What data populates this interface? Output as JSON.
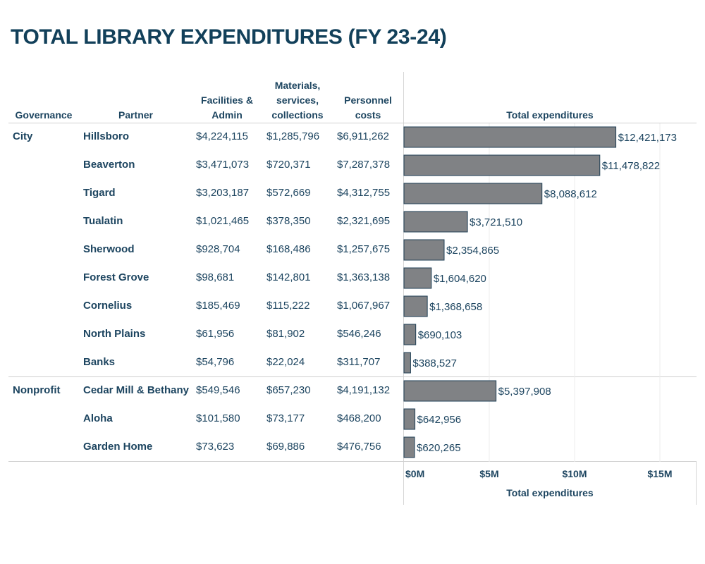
{
  "title": "TOTAL LIBRARY EXPENDITURES (FY 23-24)",
  "headers": {
    "governance": "Governance",
    "partner": "Partner",
    "facilities": "Facilities & Admin",
    "materials": "Materials, services, collections",
    "personnel": "Personnel costs",
    "total": "Total expenditures"
  },
  "colors": {
    "bar": "#808285",
    "bar_stroke": "#1f3f55",
    "text": "#1d4560",
    "title": "#12405a"
  },
  "groups": [
    {
      "governance": "City",
      "rows": [
        {
          "partner": "Hillsboro",
          "facilities": "$4,224,115",
          "materials": "$1,285,796",
          "personnel": "$6,911,262",
          "total": "$12,421,173",
          "value": 12421173
        },
        {
          "partner": "Beaverton",
          "facilities": "$3,471,073",
          "materials": "$720,371",
          "personnel": "$7,287,378",
          "total": "$11,478,822",
          "value": 11478822
        },
        {
          "partner": "Tigard",
          "facilities": "$3,203,187",
          "materials": "$572,669",
          "personnel": "$4,312,755",
          "total": "$8,088,612",
          "value": 8088612
        },
        {
          "partner": "Tualatin",
          "facilities": "$1,021,465",
          "materials": "$378,350",
          "personnel": "$2,321,695",
          "total": "$3,721,510",
          "value": 3721510
        },
        {
          "partner": "Sherwood",
          "facilities": "$928,704",
          "materials": "$168,486",
          "personnel": "$1,257,675",
          "total": "$2,354,865",
          "value": 2354865
        },
        {
          "partner": "Forest Grove",
          "facilities": "$98,681",
          "materials": "$142,801",
          "personnel": "$1,363,138",
          "total": "$1,604,620",
          "value": 1604620
        },
        {
          "partner": "Cornelius",
          "facilities": "$185,469",
          "materials": "$115,222",
          "personnel": "$1,067,967",
          "total": "$1,368,658",
          "value": 1368658
        },
        {
          "partner": "North Plains",
          "facilities": "$61,956",
          "materials": "$81,902",
          "personnel": "$546,246",
          "total": "$690,103",
          "value": 690103
        },
        {
          "partner": "Banks",
          "facilities": "$54,796",
          "materials": "$22,024",
          "personnel": "$311,707",
          "total": "$388,527",
          "value": 388527
        }
      ]
    },
    {
      "governance": "Nonprofit",
      "rows": [
        {
          "partner": "Cedar Mill & Bethany",
          "facilities": "$549,546",
          "materials": "$657,230",
          "personnel": "$4,191,132",
          "total": "$5,397,908",
          "value": 5397908
        },
        {
          "partner": "Aloha",
          "facilities": "$101,580",
          "materials": "$73,177",
          "personnel": "$468,200",
          "total": "$642,956",
          "value": 642956
        },
        {
          "partner": "Garden Home",
          "facilities": "$73,623",
          "materials": "$69,886",
          "personnel": "$476,756",
          "total": "$620,265",
          "value": 620265
        }
      ]
    }
  ],
  "chart_data": {
    "type": "bar",
    "orientation": "horizontal",
    "categories": [
      "Hillsboro",
      "Beaverton",
      "Tigard",
      "Tualatin",
      "Sherwood",
      "Forest Grove",
      "Cornelius",
      "North Plains",
      "Banks",
      "Cedar Mill & Bethany",
      "Aloha",
      "Garden Home"
    ],
    "values": [
      12421173,
      11478822,
      8088612,
      3721510,
      2354865,
      1604620,
      1368658,
      690103,
      388527,
      5397908,
      642956,
      620265
    ],
    "xlabel": "Total expenditures",
    "xlim": [
      0,
      17000000
    ],
    "ticks": [
      {
        "value": 0,
        "label": "$0M"
      },
      {
        "value": 5000000,
        "label": "$5M"
      },
      {
        "value": 10000000,
        "label": "$10M"
      },
      {
        "value": 15000000,
        "label": "$15M"
      }
    ],
    "grid": true
  }
}
